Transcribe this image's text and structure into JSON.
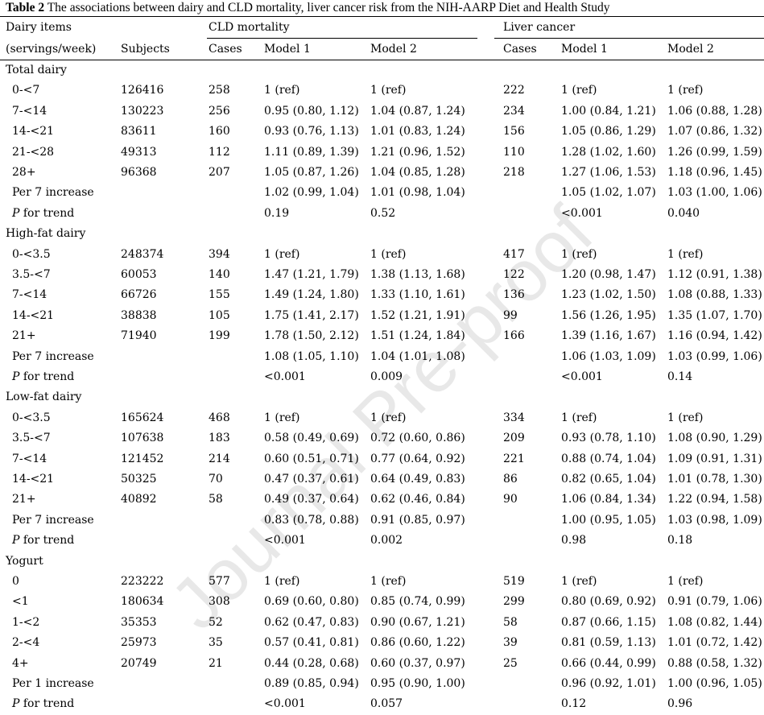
{
  "caption": {
    "label": "Table 2",
    "text": "The associations between dairy and CLD mortality, liver cancer risk from the NIH-AARP Diet and Health Study"
  },
  "watermark": "Journal Pre-proof",
  "headers": {
    "dairy_items": "Dairy items",
    "unit": "(servings/week)",
    "subjects": "Subjects",
    "cld": "CLD mortality",
    "liver": "Liver cancer",
    "cases": "Cases",
    "model1": "Model 1",
    "model2": "Model 2"
  },
  "sections": [
    {
      "title": "Total dairy",
      "rows": [
        {
          "label": "0-<7",
          "italic": "",
          "subjects": "126416",
          "cld_cases": "258",
          "cld_m1": "1 (ref)",
          "cld_m2": "1 (ref)",
          "lc_cases": "222",
          "lc_m1": "1 (ref)",
          "lc_m2": "1 (ref)"
        },
        {
          "label": "7-<14",
          "italic": "",
          "subjects": "130223",
          "cld_cases": "256",
          "cld_m1": "0.95 (0.80, 1.12)",
          "cld_m2": "1.04 (0.87, 1.24)",
          "lc_cases": "234",
          "lc_m1": "1.00 (0.84, 1.21)",
          "lc_m2": "1.06 (0.88, 1.28)"
        },
        {
          "label": "14-<21",
          "italic": "",
          "subjects": "83611",
          "cld_cases": "160",
          "cld_m1": "0.93 (0.76, 1.13)",
          "cld_m2": "1.01 (0.83, 1.24)",
          "lc_cases": "156",
          "lc_m1": "1.05 (0.86, 1.29)",
          "lc_m2": "1.07 (0.86, 1.32)"
        },
        {
          "label": "21-<28",
          "italic": "",
          "subjects": "49313",
          "cld_cases": "112",
          "cld_m1": "1.11 (0.89, 1.39)",
          "cld_m2": "1.21 (0.96, 1.52)",
          "lc_cases": "110",
          "lc_m1": "1.28 (1.02, 1.60)",
          "lc_m2": "1.26 (0.99, 1.59)"
        },
        {
          "label": "28+",
          "italic": "",
          "subjects": "96368",
          "cld_cases": "207",
          "cld_m1": "1.05 (0.87, 1.26)",
          "cld_m2": "1.04 (0.85, 1.28)",
          "lc_cases": "218",
          "lc_m1": "1.27 (1.06, 1.53)",
          "lc_m2": "1.18 (0.96, 1.45)"
        },
        {
          "label": "Per 7 increase",
          "italic": "",
          "subjects": "",
          "cld_cases": "",
          "cld_m1": "1.02 (0.99, 1.04)",
          "cld_m2": "1.01 (0.98, 1.04)",
          "lc_cases": "",
          "lc_m1": "1.05 (1.02, 1.07)",
          "lc_m2": "1.03 (1.00, 1.06)"
        },
        {
          "label": " for trend",
          "italic": "P",
          "subjects": "",
          "cld_cases": "",
          "cld_m1": "0.19",
          "cld_m2": "0.52",
          "lc_cases": "",
          "lc_m1": "<0.001",
          "lc_m2": "0.040"
        }
      ]
    },
    {
      "title": "High-fat dairy",
      "rows": [
        {
          "label": "0-<3.5",
          "italic": "",
          "subjects": "248374",
          "cld_cases": "394",
          "cld_m1": "1 (ref)",
          "cld_m2": "1 (ref)",
          "lc_cases": "417",
          "lc_m1": "1 (ref)",
          "lc_m2": "1 (ref)"
        },
        {
          "label": "3.5-<7",
          "italic": "",
          "subjects": "60053",
          "cld_cases": "140",
          "cld_m1": "1.47 (1.21, 1.79)",
          "cld_m2": "1.38 (1.13, 1.68)",
          "lc_cases": "122",
          "lc_m1": "1.20 (0.98, 1.47)",
          "lc_m2": "1.12 (0.91, 1.38)"
        },
        {
          "label": "7-<14",
          "italic": "",
          "subjects": "66726",
          "cld_cases": "155",
          "cld_m1": "1.49 (1.24, 1.80)",
          "cld_m2": "1.33 (1.10, 1.61)",
          "lc_cases": "136",
          "lc_m1": "1.23 (1.02, 1.50)",
          "lc_m2": "1.08 (0.88, 1.33)"
        },
        {
          "label": "14-<21",
          "italic": "",
          "subjects": "38838",
          "cld_cases": "105",
          "cld_m1": "1.75 (1.41, 2.17)",
          "cld_m2": "1.52 (1.21, 1.91)",
          "lc_cases": "99",
          "lc_m1": "1.56 (1.26, 1.95)",
          "lc_m2": "1.35 (1.07, 1.70)"
        },
        {
          "label": "21+",
          "italic": "",
          "subjects": "71940",
          "cld_cases": "199",
          "cld_m1": "1.78 (1.50, 2.12)",
          "cld_m2": "1.51 (1.24, 1.84)",
          "lc_cases": "166",
          "lc_m1": "1.39 (1.16, 1.67)",
          "lc_m2": "1.16 (0.94, 1.42)"
        },
        {
          "label": "Per 7 increase",
          "italic": "",
          "subjects": "",
          "cld_cases": "",
          "cld_m1": "1.08 (1.05, 1.10)",
          "cld_m2": "1.04 (1.01, 1.08)",
          "lc_cases": "",
          "lc_m1": "1.06 (1.03, 1.09)",
          "lc_m2": "1.03 (0.99, 1.06)"
        },
        {
          "label": " for trend",
          "italic": "P",
          "subjects": "",
          "cld_cases": "",
          "cld_m1": "<0.001",
          "cld_m2": "0.009",
          "lc_cases": "",
          "lc_m1": "<0.001",
          "lc_m2": "0.14"
        }
      ]
    },
    {
      "title": "Low-fat dairy",
      "rows": [
        {
          "label": "0-<3.5",
          "italic": "",
          "subjects": "165624",
          "cld_cases": "468",
          "cld_m1": "1 (ref)",
          "cld_m2": "1 (ref)",
          "lc_cases": "334",
          "lc_m1": "1 (ref)",
          "lc_m2": "1 (ref)"
        },
        {
          "label": "3.5-<7",
          "italic": "",
          "subjects": "107638",
          "cld_cases": "183",
          "cld_m1": "0.58 (0.49, 0.69)",
          "cld_m2": "0.72 (0.60, 0.86)",
          "lc_cases": "209",
          "lc_m1": "0.93 (0.78, 1.10)",
          "lc_m2": "1.08 (0.90, 1.29)"
        },
        {
          "label": "7-<14",
          "italic": "",
          "subjects": "121452",
          "cld_cases": "214",
          "cld_m1": "0.60 (0.51, 0.71)",
          "cld_m2": "0.77 (0.64, 0.92)",
          "lc_cases": "221",
          "lc_m1": "0.88 (0.74, 1.04)",
          "lc_m2": "1.09 (0.91, 1.31)"
        },
        {
          "label": "14-<21",
          "italic": "",
          "subjects": "50325",
          "cld_cases": "70",
          "cld_m1": "0.47 (0.37, 0.61)",
          "cld_m2": "0.64 (0.49, 0.83)",
          "lc_cases": "86",
          "lc_m1": "0.82 (0.65, 1.04)",
          "lc_m2": "1.01 (0.78, 1.30)"
        },
        {
          "label": "21+",
          "italic": "",
          "subjects": "40892",
          "cld_cases": "58",
          "cld_m1": "0.49 (0.37, 0.64)",
          "cld_m2": "0.62 (0.46, 0.84)",
          "lc_cases": "90",
          "lc_m1": "1.06 (0.84, 1.34)",
          "lc_m2": "1.22 (0.94, 1.58)"
        },
        {
          "label": "Per 7 increase",
          "italic": "",
          "subjects": "",
          "cld_cases": "",
          "cld_m1": "0.83 (0.78, 0.88)",
          "cld_m2": "0.91 (0.85, 0.97)",
          "lc_cases": "",
          "lc_m1": "1.00 (0.95, 1.05)",
          "lc_m2": "1.03 (0.98, 1.09)"
        },
        {
          "label": " for trend",
          "italic": "P",
          "subjects": "",
          "cld_cases": "",
          "cld_m1": "<0.001",
          "cld_m2": "0.002",
          "lc_cases": "",
          "lc_m1": "0.98",
          "lc_m2": "0.18"
        }
      ]
    },
    {
      "title": "Yogurt",
      "rows": [
        {
          "label": "0",
          "italic": "",
          "subjects": "223222",
          "cld_cases": "577",
          "cld_m1": "1 (ref)",
          "cld_m2": "1 (ref)",
          "lc_cases": "519",
          "lc_m1": "1 (ref)",
          "lc_m2": "1 (ref)"
        },
        {
          "label": "<1",
          "italic": "",
          "subjects": "180634",
          "cld_cases": "308",
          "cld_m1": "0.69 (0.60, 0.80)",
          "cld_m2": "0.85 (0.74, 0.99)",
          "lc_cases": "299",
          "lc_m1": "0.80 (0.69, 0.92)",
          "lc_m2": "0.91 (0.79, 1.06)"
        },
        {
          "label": "1-<2",
          "italic": "",
          "subjects": "35353",
          "cld_cases": "52",
          "cld_m1": "0.62 (0.47, 0.83)",
          "cld_m2": "0.90 (0.67, 1.21)",
          "lc_cases": "58",
          "lc_m1": "0.87 (0.66, 1.15)",
          "lc_m2": "1.08 (0.82, 1.44)"
        },
        {
          "label": "2-<4",
          "italic": "",
          "subjects": "25973",
          "cld_cases": "35",
          "cld_m1": "0.57 (0.41, 0.81)",
          "cld_m2": "0.86 (0.60, 1.22)",
          "lc_cases": "39",
          "lc_m1": "0.81 (0.59, 1.13)",
          "lc_m2": "1.01 (0.72, 1.42)"
        },
        {
          "label": "4+",
          "italic": "",
          "subjects": "20749",
          "cld_cases": "21",
          "cld_m1": "0.44 (0.28, 0.68)",
          "cld_m2": "0.60 (0.37, 0.97)",
          "lc_cases": "25",
          "lc_m1": "0.66 (0.44, 0.99)",
          "lc_m2": "0.88 (0.58, 1.32)"
        },
        {
          "label": "Per 1 increase",
          "italic": "",
          "subjects": "",
          "cld_cases": "",
          "cld_m1": "0.89 (0.85, 0.94)",
          "cld_m2": "0.95 (0.90, 1.00)",
          "lc_cases": "",
          "lc_m1": "0.96 (0.92, 1.01)",
          "lc_m2": "1.00 (0.96, 1.05)"
        },
        {
          "label": " for trend",
          "italic": "P",
          "subjects": "",
          "cld_cases": "",
          "cld_m1": "<0.001",
          "cld_m2": "0.057",
          "lc_cases": "",
          "lc_m1": "0.12",
          "lc_m2": "0.96"
        }
      ]
    }
  ]
}
